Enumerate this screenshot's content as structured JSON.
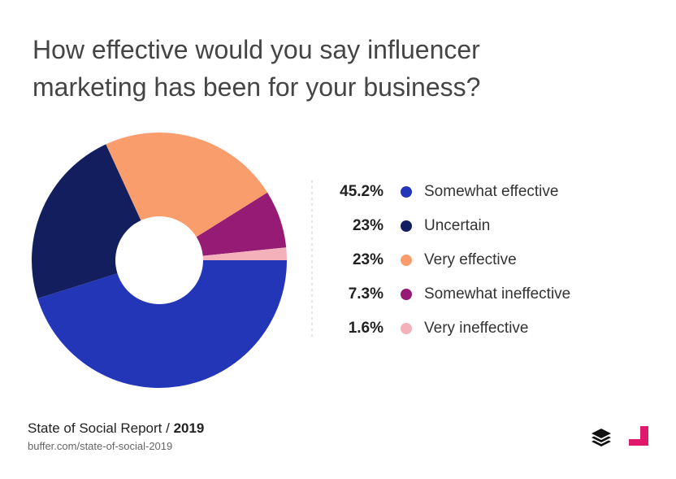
{
  "chart_data": {
    "type": "pie",
    "title": "How effective would you say influencer marketing has been for your business?",
    "categories": [
      "Somewhat effective",
      "Uncertain",
      "Very effective",
      "Somewhat ineffective",
      "Very ineffective"
    ],
    "values": [
      45.2,
      23,
      23,
      7.3,
      1.6
    ],
    "value_labels": [
      "45.2%",
      "23%",
      "23%",
      "7.3%",
      "1.6%"
    ],
    "colors": [
      "#2436b8",
      "#131e5f",
      "#fa9d6c",
      "#951b74",
      "#f5b1ba"
    ],
    "donut": true
  },
  "footer": {
    "source": "State of Social Report /",
    "year": "2019",
    "url": "buffer.com/state-of-social-2019"
  }
}
